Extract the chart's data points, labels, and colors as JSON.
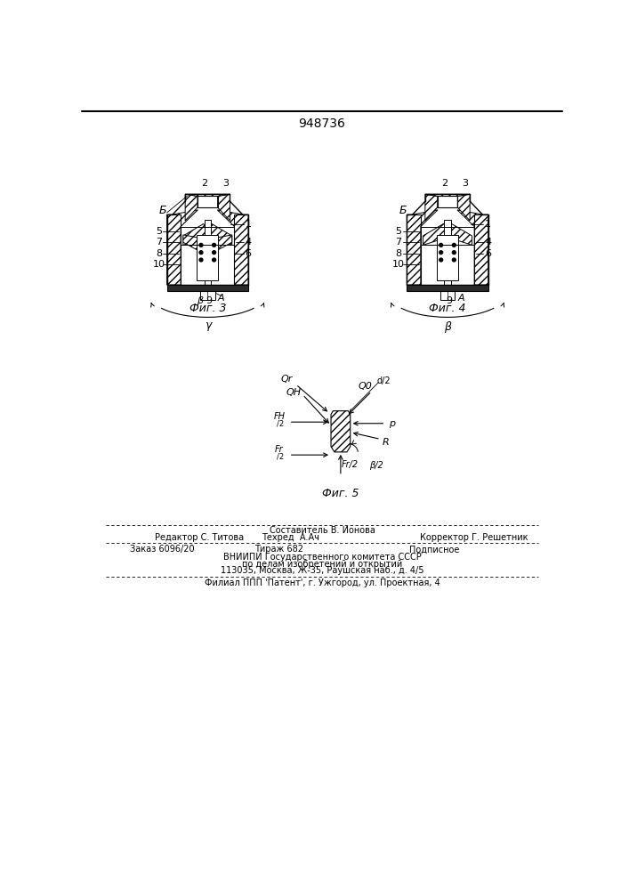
{
  "patent_number": "948736",
  "bg": "#ffffff",
  "fig3_caption": "Фиг. 3",
  "fig4_caption": "Фиг. 4",
  "fig5_caption": "Фиг. 5",
  "footer": {
    "line1_center": "Составитель В. Ионова",
    "line2_left": "Редактор С. Титова",
    "line2_mid": "Техред  А.Ач",
    "line2_right": "Корректор Г. Решетник",
    "line3_left": "Заказ 6096/20",
    "line3_mid": "Тираж 682",
    "line3_right": "Подписное",
    "line4": "ВНИИПИ Государственного комитета СССР",
    "line5": "по делам изобретений и открытий",
    "line6": "113035, Москва, Ж-35, Раушская наб., д. 4/5",
    "line7": "Филиал ППП ’’Патент’’, г. Ужгород, ул. Проектная, 4"
  }
}
